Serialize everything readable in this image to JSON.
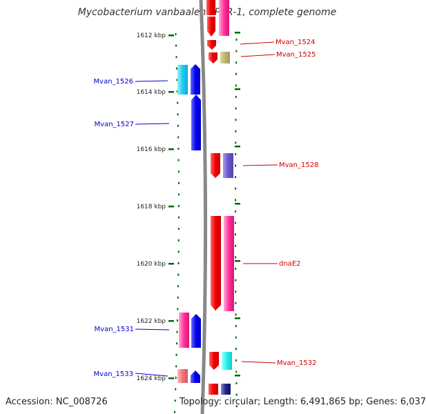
{
  "title": "Mycobacterium vanbaalenii PYR-1, complete genome",
  "accession_text": "Accession: NC_008726",
  "stats_text": "Topology: circular; Length: 6,491,865 bp; Genes: 6,037",
  "colors": {
    "reverse_label": "#0000cc",
    "forward_label": "#cc0000",
    "tick": "#006600",
    "backbone": "#888888"
  },
  "kbp_labels": [
    "1612 kbp",
    "1614 kbp",
    "1616 kbp",
    "1618 kbp",
    "1620 kbp",
    "1622 kbp",
    "1624 kbp"
  ],
  "genes": {
    "reverse": [
      "Mvan_1526",
      "Mvan_1527",
      "Mvan_1531",
      "Mvan_1533"
    ],
    "forward": [
      "Mvan_1524",
      "Mvan_1525",
      "Mvan_1528",
      "dnaE2",
      "Mvan_1532"
    ]
  }
}
